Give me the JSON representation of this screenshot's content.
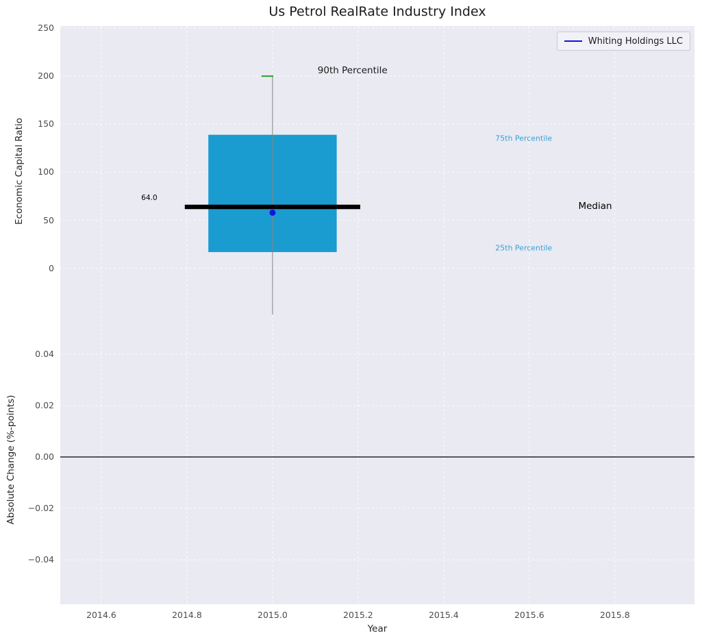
{
  "title": "Us Petrol RealRate Industry Index",
  "legend": {
    "label": "Whiting Holdings LLC"
  },
  "axes": {
    "xlabel": "Year",
    "top_ylabel": "Economic Capital Ratio",
    "bottom_ylabel": "Absolute Change (%-points)"
  },
  "chart_data": [
    {
      "type": "boxplot",
      "title": "Us Petrol RealRate Industry Index",
      "xlabel": "Year",
      "ylabel": "Economic Capital Ratio",
      "xlim": [
        2014.504,
        2015.986
      ],
      "ylim": [
        -49.3,
        252.1
      ],
      "xticks": [
        2014.6,
        2014.8,
        2015.0,
        2015.2,
        2015.4,
        2015.6,
        2015.8
      ],
      "xtick_labels": [
        "2014.6",
        "2014.8",
        "2015.0",
        "2015.2",
        "2015.4",
        "2015.6",
        "2015.8"
      ],
      "yticks": [
        0,
        50,
        100,
        150,
        200,
        250
      ],
      "ytick_labels": [
        "0",
        "50",
        "100",
        "150",
        "200",
        "250"
      ],
      "grid": true,
      "legend_position": "upper right",
      "box": {
        "x_center": 2015.0,
        "box_x": [
          2014.85,
          2015.15
        ],
        "median_x": [
          2014.795,
          2015.205
        ],
        "p25": 17,
        "median": 64,
        "p75": 139,
        "p90": 200,
        "whisker_low": -48,
        "whisker_high": 200,
        "cap_x": [
          2014.974,
          2015.002
        ]
      },
      "company_point": {
        "name": "Whiting Holdings LLC",
        "x": 2015.0,
        "y": 58
      },
      "median_value_label": "64.0",
      "annotations": [
        {
          "label": "90th Percentile",
          "x": 2015.187,
          "y": 206,
          "color": "#1a1a1a",
          "size": 13.5
        },
        {
          "label": "75th Percentile",
          "x": 2015.587,
          "y": 135,
          "color": "#35a1d6",
          "size": 11
        },
        {
          "label": "Median",
          "x": 2015.754,
          "y": 65,
          "color": "#000000",
          "size": 13.5
        },
        {
          "label": "25th Percentile",
          "x": 2015.587,
          "y": 21,
          "color": "#35a1d6",
          "size": 11
        },
        {
          "label": "64.0",
          "x": 2014.712,
          "y": 73,
          "color": "#000000",
          "size": 10.5
        }
      ]
    },
    {
      "type": "line",
      "ylabel": "Absolute Change (%-points)",
      "xlim": [
        2014.504,
        2015.986
      ],
      "ylim": [
        -0.0573,
        0.0549
      ],
      "xticks": [
        2014.6,
        2014.8,
        2015.0,
        2015.2,
        2015.4,
        2015.6,
        2015.8
      ],
      "yticks": [
        -0.04,
        -0.02,
        0.0,
        0.02,
        0.04
      ],
      "ytick_labels": [
        "−0.04",
        "−0.02",
        "0.00",
        "0.02",
        "0.04"
      ],
      "zero_line": 0.0,
      "series": []
    }
  ],
  "colors": {
    "plot_bg": "#eaeaf2",
    "grid": "#ffffff",
    "box_fill": "#1a9cd1",
    "median_line": "#000000",
    "whisker": "#848484",
    "cap_90": "#2ca02c",
    "company_dot": "#1212dd",
    "legend_line": "#1212dd",
    "percentile_text": "#35a1d6",
    "tick_text": "#4c4c4c",
    "title_text": "#1a1a1a",
    "zero_line": "#000000"
  }
}
